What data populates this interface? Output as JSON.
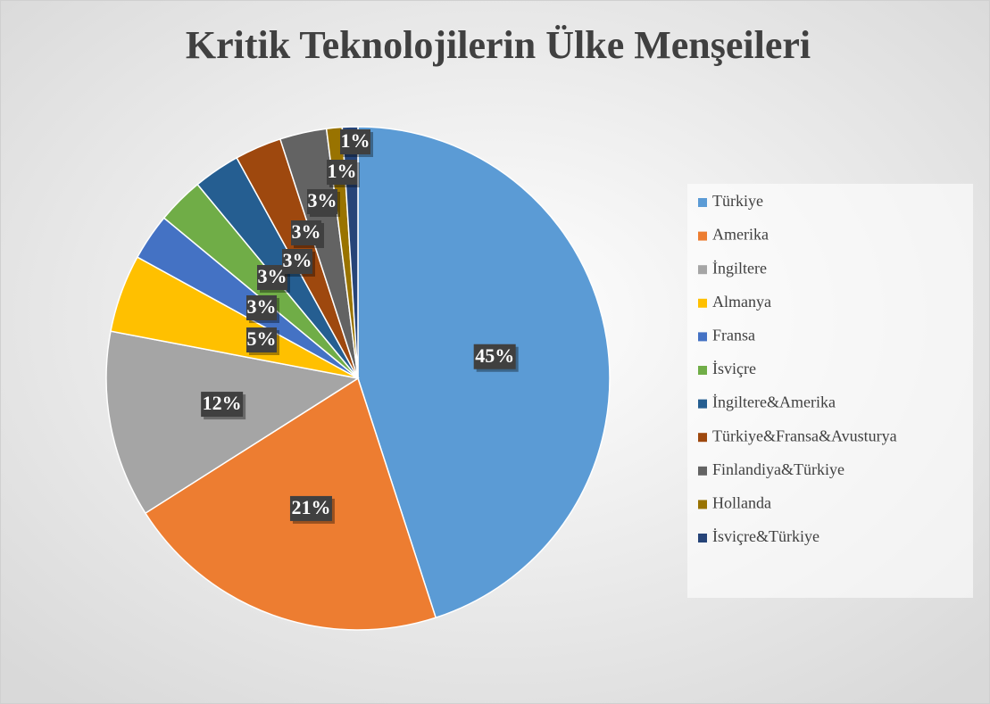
{
  "chart_data": {
    "type": "pie",
    "title": "Kritik Teknolojilerin Ülke Menşeileri",
    "categories": [
      "Türkiye",
      "Amerika",
      "İngiltere",
      "Almanya",
      "Fransa",
      "İsviçre",
      "İngiltere&Amerika",
      "Türkiye&Fransa&Avusturya",
      "Finlandiya&Türkiye",
      "Hollanda",
      "İsviçre&Türkiye"
    ],
    "values": [
      45,
      21,
      12,
      5,
      3,
      3,
      3,
      3,
      3,
      1,
      1
    ],
    "value_labels": [
      "45%",
      "21%",
      "12%",
      "5%",
      "3%",
      "3%",
      "3%",
      "3%",
      "3%",
      "1%",
      "1%"
    ],
    "colors": [
      "#5b9bd5",
      "#ed7d31",
      "#a5a5a5",
      "#ffc000",
      "#4472c4",
      "#70ad47",
      "#255e91",
      "#9e480e",
      "#636363",
      "#997300",
      "#264478"
    ],
    "legend": "right"
  }
}
